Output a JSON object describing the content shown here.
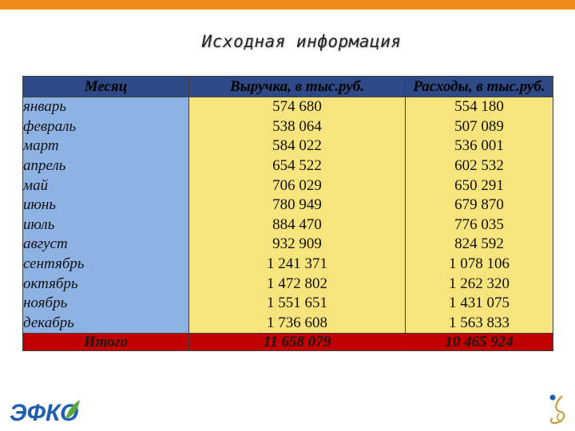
{
  "title": "Исходная информация",
  "table": {
    "headers": [
      "Месяц",
      "Выручка, в тыс.руб.",
      "Расходы, в тыс.руб."
    ],
    "rows": [
      {
        "month": "январь",
        "revenue": "574 680",
        "expenses": "554 180"
      },
      {
        "month": "февраль",
        "revenue": "538 064",
        "expenses": "507 089"
      },
      {
        "month": "март",
        "revenue": "584 022",
        "expenses": "536 001"
      },
      {
        "month": "апрель",
        "revenue": "654 522",
        "expenses": "602 532"
      },
      {
        "month": "май",
        "revenue": "706 029",
        "expenses": "650 291"
      },
      {
        "month": "июнь",
        "revenue": "780 949",
        "expenses": "679 870"
      },
      {
        "month": "июль",
        "revenue": "884 470",
        "expenses": "776 035"
      },
      {
        "month": "август",
        "revenue": "932 909",
        "expenses": "824 592"
      },
      {
        "month": "сентябрь",
        "revenue": "1 241 371",
        "expenses": "1 078 106"
      },
      {
        "month": "октябрь",
        "revenue": "1 472 802",
        "expenses": "1 262 320"
      },
      {
        "month": "ноябрь",
        "revenue": "1 551 651",
        "expenses": "1 431 075"
      },
      {
        "month": "декабрь",
        "revenue": "1 736 608",
        "expenses": "1 563 833"
      }
    ],
    "total": {
      "label": "Итого",
      "revenue": "11 658 079",
      "expenses": "10 465 924"
    }
  },
  "logo_text": "ЭФКО",
  "colors": {
    "top_bar": "#f08a18",
    "header_bg": "#2d4a87",
    "month_bg": "#8db2e3",
    "value_bg": "#f8e47c",
    "total_bg": "#c00000",
    "logo_blue": "#1f5fae",
    "logo_green": "#5aa83c"
  }
}
